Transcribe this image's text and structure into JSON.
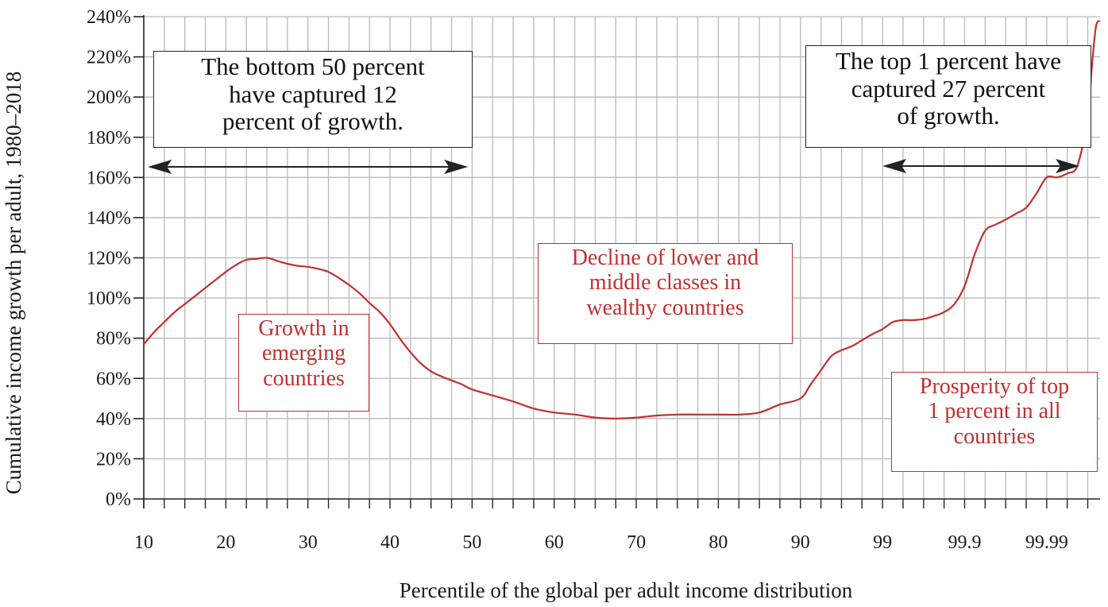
{
  "chart_data": {
    "type": "line",
    "ylabel": "Cumulative income growth per adult, 1980–2018",
    "xlabel": "Percentile of the global per adult income distribution",
    "y_ticks": [
      "0%",
      "20%",
      "40%",
      "60%",
      "80%",
      "100%",
      "120%",
      "140%",
      "160%",
      "180%",
      "200%",
      "220%",
      "240%"
    ],
    "ylim": [
      0,
      240
    ],
    "x_ticks": [
      {
        "label": "10",
        "pos": 0
      },
      {
        "label": "20",
        "pos": 2
      },
      {
        "label": "30",
        "pos": 4
      },
      {
        "label": "40",
        "pos": 6
      },
      {
        "label": "50",
        "pos": 8
      },
      {
        "label": "60",
        "pos": 10
      },
      {
        "label": "70",
        "pos": 12
      },
      {
        "label": "80",
        "pos": 14
      },
      {
        "label": "90",
        "pos": 16
      },
      {
        "label": "99",
        "pos": 18
      },
      {
        "label": "99.9",
        "pos": 20
      },
      {
        "label": "99.99",
        "pos": 22
      }
    ],
    "grid": true,
    "series": [
      {
        "color": "#c0302f",
        "x": [
          0,
          0.25,
          0.5,
          0.75,
          1,
          1.25,
          1.5,
          1.75,
          2,
          2.25,
          2.5,
          2.75,
          3,
          3.25,
          3.5,
          3.75,
          4,
          4.25,
          4.5,
          4.75,
          5,
          5.25,
          5.5,
          5.75,
          6,
          6.25,
          6.5,
          6.75,
          7,
          7.25,
          7.5,
          7.75,
          8,
          8.5,
          9,
          9.5,
          10,
          10.5,
          11,
          11.5,
          12,
          12.5,
          13,
          13.5,
          14,
          14.5,
          15,
          15.5,
          16,
          16.25,
          16.5,
          16.75,
          17,
          17.25,
          17.5,
          17.75,
          18,
          18.25,
          18.5,
          18.75,
          19,
          19.25,
          19.5,
          19.75,
          20,
          20.25,
          20.5,
          20.75,
          21,
          21.25,
          21.5,
          21.75,
          22,
          22.25,
          22.5,
          22.75,
          23,
          23.1,
          23.2,
          23.3
        ],
        "values": [
          77,
          83,
          88,
          93,
          97,
          101,
          105,
          109,
          113,
          116.5,
          119,
          119.5,
          120,
          118.5,
          117,
          116,
          115.5,
          114.5,
          113,
          110,
          106.5,
          102.5,
          97.5,
          93,
          87,
          79.5,
          73,
          67.5,
          63.5,
          61,
          59,
          57,
          54.5,
          51.5,
          48.5,
          45,
          43,
          42,
          40.5,
          40,
          40.5,
          41.5,
          42,
          42,
          42,
          42,
          43,
          47,
          50,
          57,
          64,
          71,
          74,
          76,
          79,
          82,
          84.5,
          88,
          89,
          89,
          89.5,
          91,
          93,
          97,
          106,
          122,
          133.5,
          136.5,
          139,
          142,
          145,
          152,
          160,
          160,
          162,
          166,
          190,
          215,
          235,
          238
        ]
      }
    ],
    "annotations": [
      {
        "text": "The bottom 50 percent\nhave captured 12\npercent of growth.",
        "style": "black"
      },
      {
        "text": "The top 1 percent have\ncaptured 27 percent\nof growth.",
        "style": "black"
      },
      {
        "text": "Growth in\nemerging\ncountries",
        "style": "red"
      },
      {
        "text": "Decline of lower and\nmiddle classes in\nwealthy countries",
        "style": "red"
      },
      {
        "text": "Prosperity of top\n1 percent in all\ncountries",
        "style": "red"
      }
    ]
  }
}
